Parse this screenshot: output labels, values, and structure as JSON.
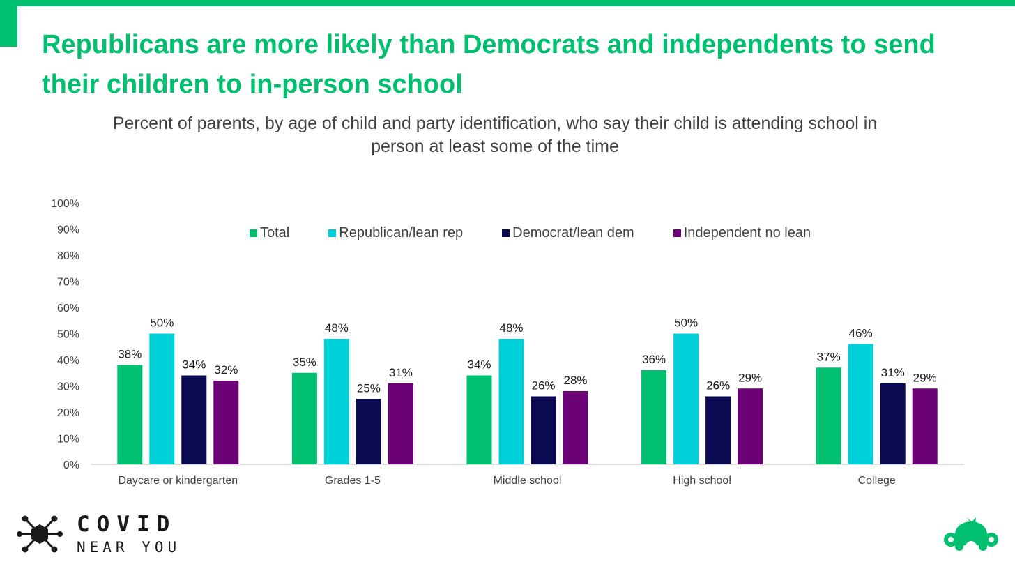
{
  "header": {
    "title": "Republicans are more likely than Democrats and independents to send their children to in-person school"
  },
  "chart_data": {
    "type": "bar",
    "title": "Republicans are more likely than Democrats and independents to send their children to in-person school",
    "subtitle": "Percent of parents, by age of child and party identification, who say their child is attending school in person at least some of the time",
    "categories": [
      "Daycare or kindergarten",
      "Grades 1-5",
      "Middle school",
      "High school",
      "College"
    ],
    "series": [
      {
        "name": "Total",
        "color": "#00BF6F",
        "values": [
          38,
          35,
          34,
          36,
          37
        ]
      },
      {
        "name": "Republican/lean rep",
        "color": "#00D0D8",
        "values": [
          50,
          48,
          48,
          50,
          46
        ]
      },
      {
        "name": "Democrat/lean dem",
        "color": "#0C0A52",
        "values": [
          34,
          25,
          26,
          26,
          31
        ]
      },
      {
        "name": "Independent no lean",
        "color": "#6B0077",
        "values": [
          32,
          31,
          28,
          29,
          29
        ]
      }
    ],
    "ylim": [
      0,
      100
    ],
    "yticks": [
      0,
      10,
      20,
      30,
      40,
      50,
      60,
      70,
      80,
      90,
      100
    ],
    "value_suffix": "%",
    "grid": false,
    "legend_position": "top-center"
  },
  "branding": {
    "left_line1": "COVID",
    "left_line2": "NEAR YOU",
    "left_icon": "virus-molecule-icon",
    "right_icon": "surveymonkey-logo-icon",
    "accent_color": "#00BF6F"
  }
}
